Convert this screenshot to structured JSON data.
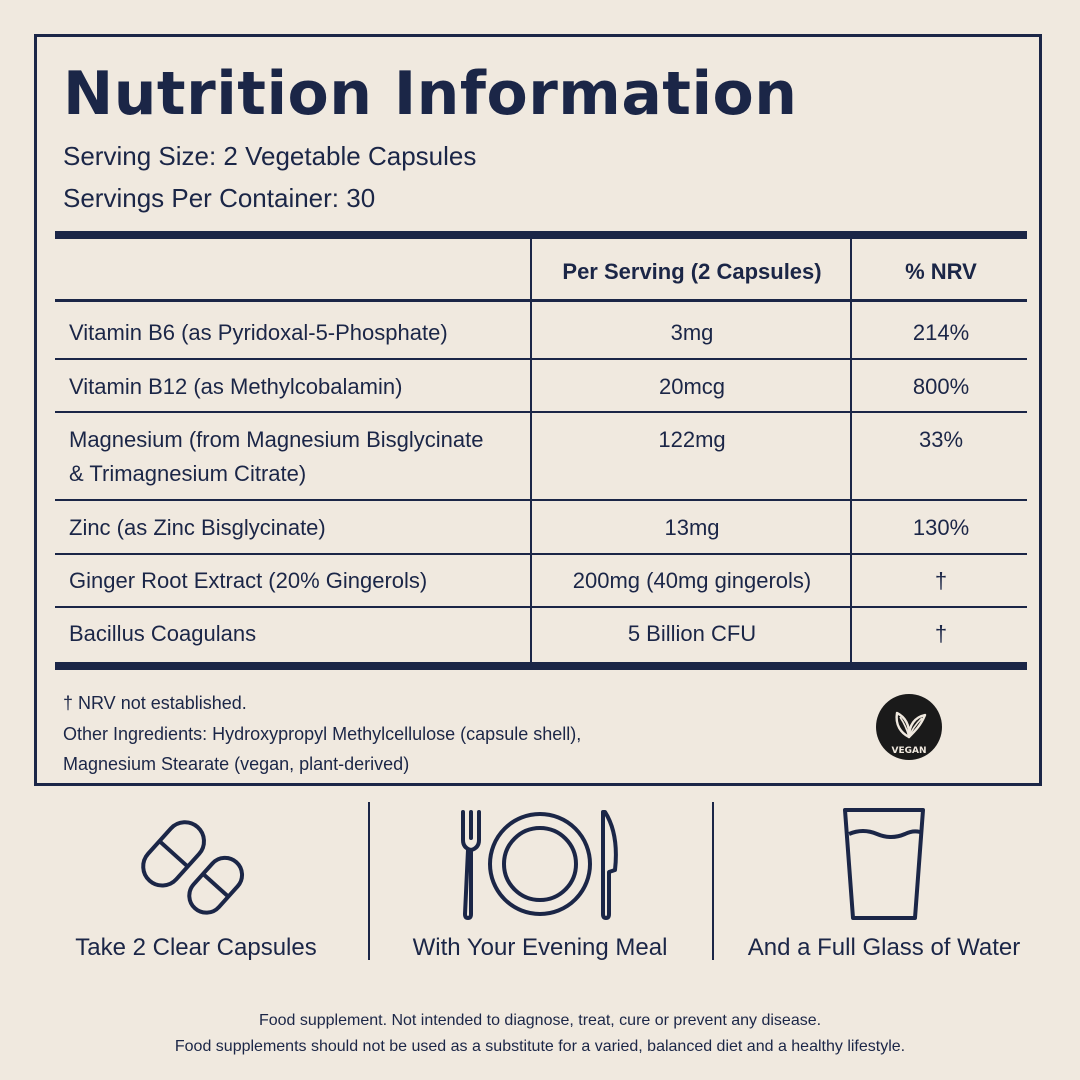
{
  "title": "Nutrition Information",
  "serving_size": "Serving Size: 2 Vegetable Capsules",
  "servings_per_container": "Servings Per Container: 30",
  "table": {
    "headers": [
      "",
      "Per Serving (2 Capsules)",
      "% NRV"
    ],
    "rows": [
      {
        "name": "Vitamin B6 (as Pyridoxal-5-Phosphate)",
        "amount": "3mg",
        "nrv": "214%"
      },
      {
        "name": "Vitamin B12 (as Methylcobalamin)",
        "amount": "20mcg",
        "nrv": "800%"
      },
      {
        "name_line1": "Magnesium (from Magnesium Bisglycinate",
        "name_line2": "& Trimagnesium Citrate)",
        "amount": "122mg",
        "nrv": "33%"
      },
      {
        "name": "Zinc (as Zinc Bisglycinate)",
        "amount": "13mg",
        "nrv": "130%"
      },
      {
        "name": "Ginger Root Extract (20% Gingerols)",
        "amount": "200mg (40mg gingerols)",
        "nrv": "†"
      },
      {
        "name": "Bacillus Coagulans",
        "amount": "5 Billion CFU",
        "nrv": "†"
      }
    ]
  },
  "footnote": "† NRV not established.",
  "other_ingredients_line1": "Other Ingredients: Hydroxypropyl Methylcellulose (capsule shell),",
  "other_ingredients_line2": "Magnesium Stearate (vegan, plant-derived)",
  "badge": {
    "label": "VEGAN",
    "icon": "leaf-icon"
  },
  "steps": [
    {
      "icon": "capsules-icon",
      "label": "Take 2 Clear Capsules"
    },
    {
      "icon": "plate-cutlery-icon",
      "label": "With Your Evening Meal"
    },
    {
      "icon": "water-glass-icon",
      "label": "And a Full Glass of Water"
    }
  ],
  "disclaimer_line1": "Food supplement. Not intended to diagnose, treat, cure or prevent any disease.",
  "disclaimer_line2": "Food supplements should not be used as a substitute for a varied, balanced diet and a healthy lifestyle.",
  "colors": {
    "ink": "#1b2647",
    "background": "#f0e9df"
  }
}
